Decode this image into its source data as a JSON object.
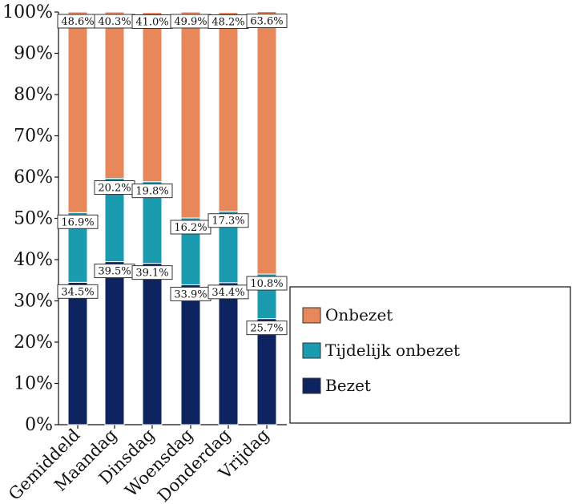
{
  "chart_data": {
    "type": "bar",
    "stacked": true,
    "percent": true,
    "categories": [
      "Gemiddeld",
      "Maandag",
      "Dinsdag",
      "Woensdag",
      "Donderdag",
      "Vrijdag"
    ],
    "series": [
      {
        "name": "Bezet",
        "color": "#0d2461",
        "values": [
          34.5,
          39.5,
          39.1,
          33.9,
          34.4,
          25.7
        ]
      },
      {
        "name": "Tijdelijk onbezet",
        "color": "#1a9bb0",
        "values": [
          16.9,
          20.2,
          19.8,
          16.2,
          17.3,
          10.8
        ]
      },
      {
        "name": "Onbezet",
        "color": "#e8875a",
        "values": [
          48.6,
          40.3,
          41.0,
          49.9,
          48.2,
          63.6
        ]
      }
    ],
    "yticks": [
      "0%",
      "10%",
      "20%",
      "30%",
      "40%",
      "50%",
      "60%",
      "70%",
      "80%",
      "90%",
      "100%"
    ],
    "ylim": [
      0,
      100
    ],
    "legend_order": [
      "Onbezet",
      "Tijdelijk onbezet",
      "Bezet"
    ],
    "legend_position": "right",
    "grid": false
  }
}
